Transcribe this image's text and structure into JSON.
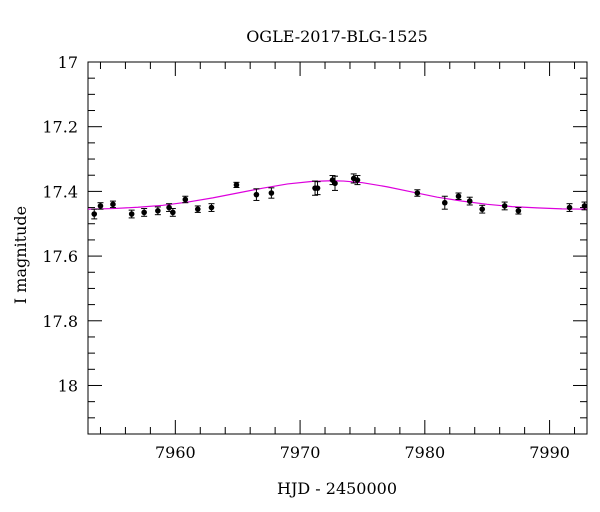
{
  "chart_data": {
    "type": "scatter",
    "title": "OGLE-2017-BLG-1525",
    "xlabel": "HJD - 2450000",
    "ylabel": "I magnitude",
    "xlim": [
      7953,
      7993
    ],
    "ylim": [
      17,
      18.15
    ],
    "y_inverted": true,
    "x_ticks": [
      7960,
      7970,
      7980,
      7990
    ],
    "y_ticks": [
      17,
      17.2,
      17.4,
      17.6,
      17.8,
      18
    ],
    "y_tick_labels": [
      "17",
      "17.2",
      "17.4",
      "17.6",
      "17.8",
      "18"
    ],
    "grid": false,
    "legend": "none",
    "colors": {
      "points": "#000000",
      "model": "#dd00dd"
    },
    "series": [
      {
        "kind": "points",
        "x": [
          7953.5,
          7954.0,
          7955.0,
          7956.5,
          7957.5,
          7958.6,
          7959.5,
          7959.8,
          7960.8,
          7961.8,
          7962.9,
          7964.9,
          7966.5,
          7967.7,
          7971.2,
          7971.4,
          7972.6,
          7972.8,
          7974.3,
          7974.6,
          7979.4,
          7981.6,
          7982.7,
          7983.6,
          7984.6,
          7986.4,
          7987.5,
          7991.6,
          7992.8
        ],
        "y": [
          17.47,
          17.445,
          17.44,
          17.47,
          17.465,
          17.46,
          17.45,
          17.465,
          17.425,
          17.455,
          17.45,
          17.38,
          17.41,
          17.405,
          17.39,
          17.39,
          17.365,
          17.375,
          17.36,
          17.365,
          17.405,
          17.435,
          17.415,
          17.43,
          17.455,
          17.445,
          17.46,
          17.45,
          17.445
        ],
        "yerr": [
          0.015,
          0.01,
          0.01,
          0.012,
          0.012,
          0.012,
          0.012,
          0.012,
          0.01,
          0.01,
          0.012,
          0.008,
          0.018,
          0.016,
          0.022,
          0.02,
          0.014,
          0.022,
          0.014,
          0.014,
          0.01,
          0.02,
          0.01,
          0.012,
          0.012,
          0.012,
          0.01,
          0.012,
          0.012
        ]
      },
      {
        "kind": "model",
        "x": [
          7953,
          7955,
          7957,
          7959,
          7961,
          7963,
          7965,
          7967,
          7969,
          7971,
          7972.5,
          7973.5,
          7975,
          7977,
          7979,
          7981,
          7983,
          7985,
          7987,
          7989,
          7991,
          7993
        ],
        "y": [
          17.455,
          17.453,
          17.449,
          17.443,
          17.433,
          17.42,
          17.405,
          17.39,
          17.377,
          17.369,
          17.367,
          17.368,
          17.373,
          17.386,
          17.402,
          17.418,
          17.43,
          17.44,
          17.447,
          17.451,
          17.454,
          17.455
        ]
      }
    ]
  }
}
